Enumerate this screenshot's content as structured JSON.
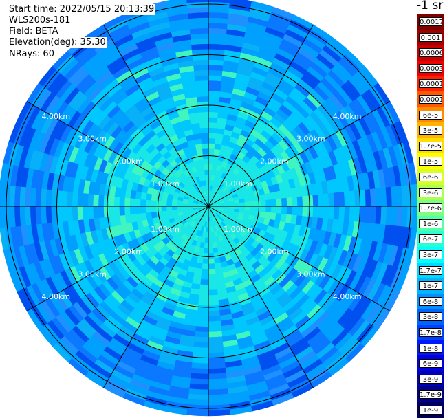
{
  "header": {
    "start_time": "Start time: 2022/05/15 20:13:39",
    "device": "WLS200s-181",
    "field": "Field: BETA",
    "elevation": "Elevation(deg): 35.30",
    "nrays": "NRays: 60"
  },
  "range_rings": {
    "labels": [
      "1.00km",
      "2.00km",
      "3.00km",
      "4.00km"
    ]
  },
  "colorbar": {
    "title": "-1 sr",
    "labels": [
      "0.0017",
      "0.001",
      "0.0006",
      "0.0003",
      "0.00017",
      "0.0001",
      "6e-5",
      "3e-5",
      "1.7e-5",
      "1e-5",
      "6e-6",
      "3e-6",
      "1.7e-6",
      "1e-6",
      "6e-7",
      "3e-7",
      "1.7e-7",
      "1e-7",
      "6e-8",
      "3e-8",
      "1.7e-8",
      "1e-8",
      "6e-9",
      "3e-9",
      "1.7e-9",
      "1e-9"
    ],
    "colors": [
      "#800000",
      "#a00000",
      "#c80000",
      "#f00000",
      "#ff2000",
      "#ff5a00",
      "#ff8c00",
      "#ffb400",
      "#ffdc00",
      "#ffff00",
      "#d8ff26",
      "#aaff55",
      "#7dff80",
      "#55ffaa",
      "#29ffd5",
      "#00ffff",
      "#00d8ff",
      "#00b4ff",
      "#0090ff",
      "#0064ff",
      "#0040ff",
      "#0018ff",
      "#0000e0",
      "#0000b4",
      "#000088",
      "#00005c"
    ]
  }
}
